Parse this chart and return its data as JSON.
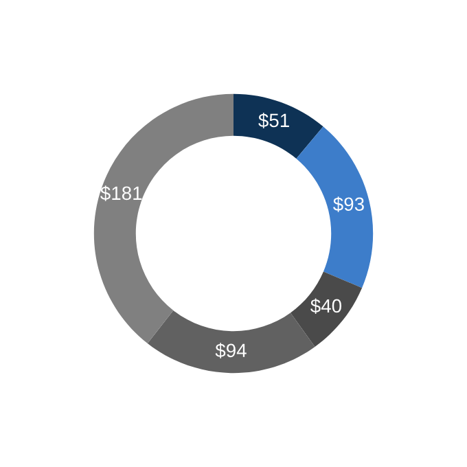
{
  "chart_data": {
    "type": "donut",
    "categories": [
      null,
      null,
      null,
      null,
      null
    ],
    "values": [
      51,
      93,
      40,
      94,
      181
    ],
    "colors": [
      "#0e3255",
      "#3d7dca",
      "#4a4a4a",
      "#616161",
      "#808080"
    ],
    "value_labels": [
      "$51",
      "$93",
      "$40",
      "$94",
      "$181"
    ]
  }
}
